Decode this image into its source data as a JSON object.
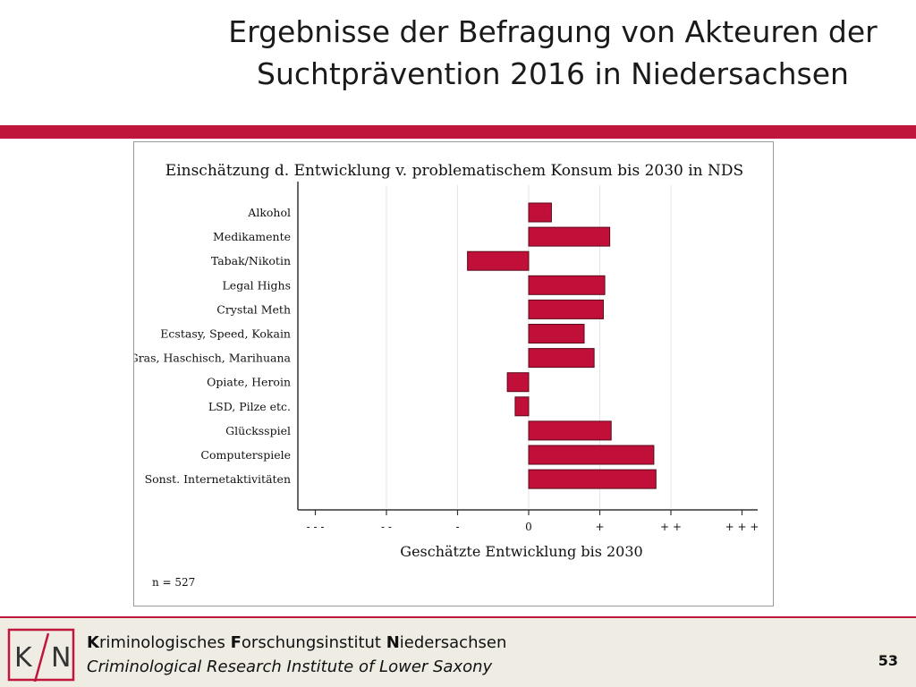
{
  "slide": {
    "title_line1": "Ergebnisse der Befragung von Akteuren der",
    "title_line2": "Suchtprävention 2016 in Niedersachsen",
    "page_number": "53"
  },
  "footer": {
    "institute_de": [
      "K",
      "riminologisches ",
      "F",
      "orschungsinstitut ",
      "N",
      "iedersachsen"
    ],
    "institute_en": "Criminological Research Institute of Lower Saxony",
    "logo_text": "KfN"
  },
  "colors": {
    "accent": "#c0163c",
    "bar_fill": "#c0103a",
    "bar_stroke": "#5a0a18",
    "footer_bg": "#efece3"
  },
  "chart_data": {
    "type": "bar",
    "orientation": "horizontal",
    "title": "Einschätzung d. Entwicklung v. problematischem Konsum bis 2030 in NDS",
    "xlabel": "Geschätzte Entwicklung bis 2030",
    "ylabel": "",
    "xlim": [
      -3,
      3
    ],
    "x_ticks": [
      -3,
      -2,
      -1,
      0,
      1,
      2,
      3
    ],
    "x_tick_labels": [
      "- - -",
      "- -",
      "-",
      "0",
      "+",
      "+ +",
      "+ + +"
    ],
    "grid": "vertical",
    "categories": [
      "Alkohol",
      "Medikamente",
      "Tabak/Nikotin",
      "Legal Highs",
      "Crystal Meth",
      "Ecstasy, Speed, Kokain",
      "Gras, Haschisch, Marihuana",
      "Opiate, Heroin",
      "LSD, Pilze etc.",
      "Glücksspiel",
      "Computerspiele",
      "Sonst. Internetaktivitäten"
    ],
    "values": [
      0.32,
      1.14,
      -0.86,
      1.07,
      1.05,
      0.78,
      0.92,
      -0.3,
      -0.19,
      1.16,
      1.76,
      1.79
    ],
    "note": "n = 527"
  }
}
